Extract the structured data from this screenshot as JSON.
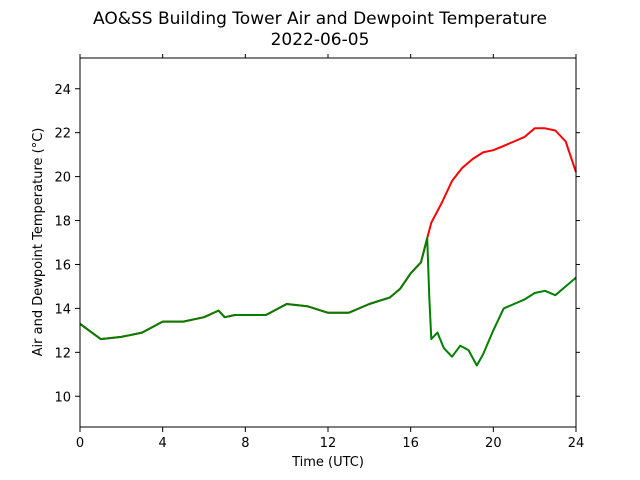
{
  "chart_data": {
    "type": "line",
    "title": "AO&SS Building Tower Air and Dewpoint Temperature",
    "subtitle": "2022-06-05",
    "xlabel": "Time (UTC)",
    "ylabel": "Air and Dewpoint Temperature (°C)",
    "xlim": [
      0,
      24
    ],
    "ylim": [
      8.6,
      25.4
    ],
    "xticks": [
      0,
      4,
      8,
      12,
      16,
      20,
      24
    ],
    "yticks": [
      10,
      12,
      14,
      16,
      18,
      20,
      22,
      24
    ],
    "grid": false,
    "series": [
      {
        "color": "#ff0000",
        "x": [
          0,
          1,
          2,
          3,
          4,
          5,
          6,
          6.7,
          7,
          7.5,
          8,
          9,
          10,
          11,
          12,
          13,
          14,
          15,
          15.5,
          16,
          16.5,
          16.8,
          17,
          17.5,
          18,
          18.5,
          19,
          19.5,
          20,
          20.5,
          21,
          21.5,
          22,
          22.5,
          23,
          23.5,
          24
        ],
        "y": [
          13.3,
          12.6,
          12.7,
          12.9,
          13.4,
          13.4,
          13.6,
          13.9,
          13.6,
          13.7,
          13.7,
          13.7,
          14.2,
          14.1,
          13.8,
          13.8,
          14.2,
          14.5,
          14.9,
          15.6,
          16.1,
          17.2,
          17.9,
          18.8,
          19.8,
          20.4,
          20.8,
          21.1,
          21.2,
          21.4,
          21.6,
          21.8,
          22.2,
          22.2,
          22.1,
          21.6,
          20.2
        ]
      },
      {
        "color": "#008000",
        "x": [
          0,
          1,
          2,
          3,
          4,
          5,
          6,
          6.7,
          7,
          7.5,
          8,
          9,
          10,
          11,
          12,
          13,
          14,
          15,
          15.5,
          16,
          16.5,
          16.8,
          16.9,
          17,
          17.3,
          17.6,
          18,
          18.4,
          18.8,
          19.2,
          19.5,
          20,
          20.5,
          21,
          21.5,
          22,
          22.5,
          23,
          23.5,
          24
        ],
        "y": [
          13.3,
          12.6,
          12.7,
          12.9,
          13.4,
          13.4,
          13.6,
          13.9,
          13.6,
          13.7,
          13.7,
          13.7,
          14.2,
          14.1,
          13.8,
          13.8,
          14.2,
          14.5,
          14.9,
          15.6,
          16.1,
          17.2,
          14.5,
          12.6,
          12.9,
          12.2,
          11.8,
          12.3,
          12.1,
          11.4,
          11.9,
          13.0,
          14.0,
          14.2,
          14.4,
          14.7,
          14.8,
          14.6,
          15.0,
          15.4
        ]
      }
    ]
  }
}
